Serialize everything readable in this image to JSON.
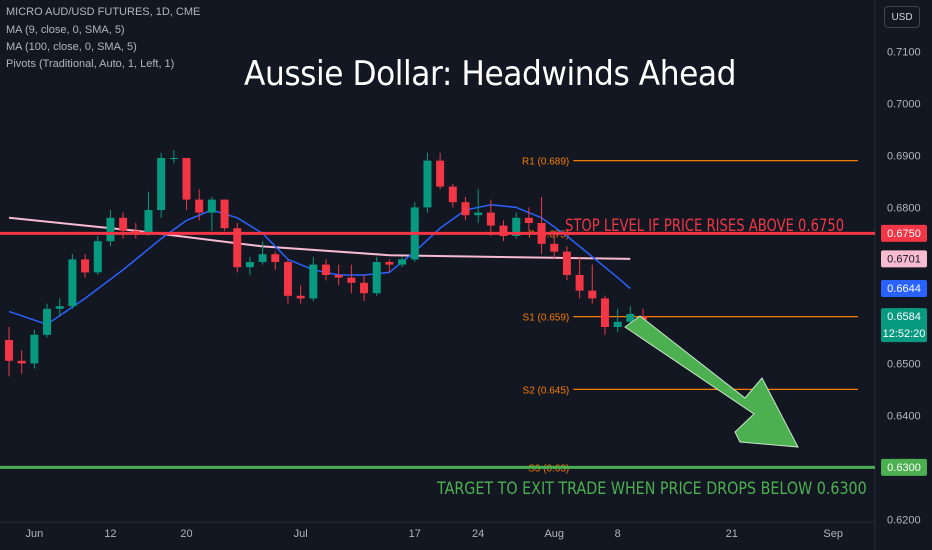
{
  "header": {
    "symbol_line": "MICRO AUD/USD FUTURES, 1D, CME",
    "indicators": [
      "MA (9, close, 0, SMA, 5)",
      "MA (100, close, 0, SMA, 5)",
      "Pivots (Traditional, Auto, 1, Left, 1)"
    ],
    "currency_button": "USD"
  },
  "annotations": {
    "headline": "Aussie Dollar: Headwinds Ahead",
    "stop_note": "STOP LEVEL IF PRICE RISES ABOVE 0.6750",
    "target_note": "TARGET TO EXIT TRADE WHEN PRICE DROPS BELOW 0.6300"
  },
  "colors": {
    "background": "#131722",
    "bull": "#089981",
    "bear": "#f23645",
    "pivot": "#f57c00",
    "ma9": "#2962ff",
    "ma100": "#f8bbd0",
    "stop_line": "#f23645",
    "target_line": "#4caf50",
    "arrow": "#4caf50"
  },
  "chart_data": {
    "type": "candlestick",
    "y_axis": {
      "range": [
        0.6195,
        0.7195
      ],
      "ticks": [
        "0.7100",
        "0.7000",
        "0.6900",
        "0.6800",
        "0.6500",
        "0.6400",
        "0.6200"
      ],
      "partial_tick": "0.6600"
    },
    "x_axis": {
      "ticks": [
        {
          "label": "Jun",
          "bar": 2
        },
        {
          "label": "12",
          "bar": 8
        },
        {
          "label": "20",
          "bar": 14
        },
        {
          "label": "Jul",
          "bar": 23
        },
        {
          "label": "17",
          "bar": 32
        },
        {
          "label": "24",
          "bar": 37
        },
        {
          "label": "Aug",
          "bar": 43
        },
        {
          "label": "8",
          "bar": 48
        },
        {
          "label": "21",
          "bar": 57
        },
        {
          "label": "Sep",
          "bar": 65
        }
      ]
    },
    "candles": [
      {
        "o": 0.6545,
        "h": 0.657,
        "l": 0.6475,
        "c": 0.6505
      },
      {
        "o": 0.6505,
        "h": 0.6525,
        "l": 0.648,
        "c": 0.65
      },
      {
        "o": 0.65,
        "h": 0.6565,
        "l": 0.649,
        "c": 0.6555
      },
      {
        "o": 0.6555,
        "h": 0.6615,
        "l": 0.655,
        "c": 0.6605
      },
      {
        "o": 0.6605,
        "h": 0.6625,
        "l": 0.659,
        "c": 0.661
      },
      {
        "o": 0.661,
        "h": 0.671,
        "l": 0.6605,
        "c": 0.67
      },
      {
        "o": 0.67,
        "h": 0.671,
        "l": 0.6665,
        "c": 0.6675
      },
      {
        "o": 0.6675,
        "h": 0.6745,
        "l": 0.667,
        "c": 0.6735
      },
      {
        "o": 0.6735,
        "h": 0.6795,
        "l": 0.6725,
        "c": 0.678
      },
      {
        "o": 0.678,
        "h": 0.679,
        "l": 0.674,
        "c": 0.6755
      },
      {
        "o": 0.6755,
        "h": 0.677,
        "l": 0.674,
        "c": 0.675
      },
      {
        "o": 0.675,
        "h": 0.683,
        "l": 0.6745,
        "c": 0.6795
      },
      {
        "o": 0.6795,
        "h": 0.6905,
        "l": 0.678,
        "c": 0.6895
      },
      {
        "o": 0.6895,
        "h": 0.691,
        "l": 0.6885,
        "c": 0.6895
      },
      {
        "o": 0.6895,
        "h": 0.6895,
        "l": 0.6795,
        "c": 0.6815
      },
      {
        "o": 0.6815,
        "h": 0.6835,
        "l": 0.6775,
        "c": 0.679
      },
      {
        "o": 0.679,
        "h": 0.682,
        "l": 0.6755,
        "c": 0.6815
      },
      {
        "o": 0.6815,
        "h": 0.6815,
        "l": 0.6755,
        "c": 0.676
      },
      {
        "o": 0.676,
        "h": 0.677,
        "l": 0.6675,
        "c": 0.6685
      },
      {
        "o": 0.6685,
        "h": 0.6705,
        "l": 0.667,
        "c": 0.6695
      },
      {
        "o": 0.6695,
        "h": 0.6735,
        "l": 0.669,
        "c": 0.671
      },
      {
        "o": 0.671,
        "h": 0.6715,
        "l": 0.668,
        "c": 0.6695
      },
      {
        "o": 0.6695,
        "h": 0.67,
        "l": 0.6615,
        "c": 0.663
      },
      {
        "o": 0.663,
        "h": 0.665,
        "l": 0.6615,
        "c": 0.6625
      },
      {
        "o": 0.6625,
        "h": 0.6705,
        "l": 0.662,
        "c": 0.669
      },
      {
        "o": 0.669,
        "h": 0.67,
        "l": 0.666,
        "c": 0.667
      },
      {
        "o": 0.667,
        "h": 0.669,
        "l": 0.665,
        "c": 0.6665
      },
      {
        "o": 0.6665,
        "h": 0.669,
        "l": 0.6635,
        "c": 0.6655
      },
      {
        "o": 0.6655,
        "h": 0.667,
        "l": 0.662,
        "c": 0.6635
      },
      {
        "o": 0.6635,
        "h": 0.6705,
        "l": 0.663,
        "c": 0.6695
      },
      {
        "o": 0.6695,
        "h": 0.67,
        "l": 0.6675,
        "c": 0.669
      },
      {
        "o": 0.669,
        "h": 0.6705,
        "l": 0.6685,
        "c": 0.67
      },
      {
        "o": 0.67,
        "h": 0.681,
        "l": 0.6695,
        "c": 0.68
      },
      {
        "o": 0.68,
        "h": 0.6905,
        "l": 0.679,
        "c": 0.689
      },
      {
        "o": 0.689,
        "h": 0.6905,
        "l": 0.6835,
        "c": 0.684
      },
      {
        "o": 0.684,
        "h": 0.6845,
        "l": 0.68,
        "c": 0.681
      },
      {
        "o": 0.681,
        "h": 0.682,
        "l": 0.6775,
        "c": 0.6785
      },
      {
        "o": 0.6785,
        "h": 0.6835,
        "l": 0.677,
        "c": 0.679
      },
      {
        "o": 0.679,
        "h": 0.6815,
        "l": 0.6745,
        "c": 0.6765
      },
      {
        "o": 0.6765,
        "h": 0.6775,
        "l": 0.6735,
        "c": 0.6745
      },
      {
        "o": 0.6745,
        "h": 0.679,
        "l": 0.674,
        "c": 0.678
      },
      {
        "o": 0.678,
        "h": 0.68,
        "l": 0.6755,
        "c": 0.677
      },
      {
        "o": 0.677,
        "h": 0.682,
        "l": 0.671,
        "c": 0.673
      },
      {
        "o": 0.673,
        "h": 0.6755,
        "l": 0.67,
        "c": 0.6715
      },
      {
        "o": 0.6715,
        "h": 0.6725,
        "l": 0.666,
        "c": 0.667
      },
      {
        "o": 0.667,
        "h": 0.6705,
        "l": 0.6625,
        "c": 0.664
      },
      {
        "o": 0.664,
        "h": 0.669,
        "l": 0.6615,
        "c": 0.6625
      },
      {
        "o": 0.6625,
        "h": 0.663,
        "l": 0.6555,
        "c": 0.657
      },
      {
        "o": 0.657,
        "h": 0.6605,
        "l": 0.656,
        "c": 0.658
      },
      {
        "o": 0.658,
        "h": 0.661,
        "l": 0.657,
        "c": 0.6595
      },
      {
        "o": 0.659,
        "h": 0.6605,
        "l": 0.658,
        "c": 0.6584
      }
    ],
    "ma9": {
      "name": "MA (9, close, 0, SMA, 5)",
      "points": [
        [
          0,
          0.66
        ],
        [
          3,
          0.6575
        ],
        [
          6,
          0.6625
        ],
        [
          9,
          0.668
        ],
        [
          12,
          0.674
        ],
        [
          14,
          0.6775
        ],
        [
          16,
          0.6795
        ],
        [
          18,
          0.678
        ],
        [
          20,
          0.675
        ],
        [
          22,
          0.67
        ],
        [
          24,
          0.668
        ],
        [
          26,
          0.667
        ],
        [
          28,
          0.667
        ],
        [
          30,
          0.6675
        ],
        [
          32,
          0.6715
        ],
        [
          34,
          0.676
        ],
        [
          36,
          0.6795
        ],
        [
          38,
          0.6805
        ],
        [
          40,
          0.68
        ],
        [
          42,
          0.678
        ],
        [
          44,
          0.6745
        ],
        [
          46,
          0.6705
        ],
        [
          48,
          0.6665
        ],
        [
          49,
          0.6644
        ]
      ]
    },
    "ma100": {
      "name": "MA (100, close, 0, SMA, 5)",
      "points": [
        [
          0,
          0.678
        ],
        [
          10,
          0.6755
        ],
        [
          20,
          0.6725
        ],
        [
          30,
          0.6708
        ],
        [
          40,
          0.6704
        ],
        [
          49,
          0.6701
        ]
      ]
    },
    "pivots": [
      {
        "label": "R1 (0.689)",
        "value": 0.689
      },
      {
        "label": "P (0.675)",
        "value": 0.675
      },
      {
        "label": "S1 (0.659)",
        "value": 0.659
      },
      {
        "label": "S2 (0.645)",
        "value": 0.645
      },
      {
        "label": "S3 (0.63)",
        "value": 0.63
      }
    ],
    "stop_level": 0.675,
    "target_level": 0.63,
    "axis_badges": [
      {
        "value": "0.6750",
        "price": 0.675,
        "bg": "#f23645",
        "fg": "#ffffff"
      },
      {
        "value": "0.6701",
        "price": 0.6701,
        "bg": "#f8bbd0",
        "fg": "#131722"
      },
      {
        "value": "0.6644",
        "price": 0.6644,
        "bg": "#2962ff",
        "fg": "#ffffff"
      },
      {
        "value": "0.6584",
        "price": 0.659,
        "bg": "#089981",
        "fg": "#ffffff",
        "sub": "12:52:20"
      },
      {
        "value": "0.6300",
        "price": 0.63,
        "bg": "#4caf50",
        "fg": "#ffffff"
      }
    ]
  }
}
